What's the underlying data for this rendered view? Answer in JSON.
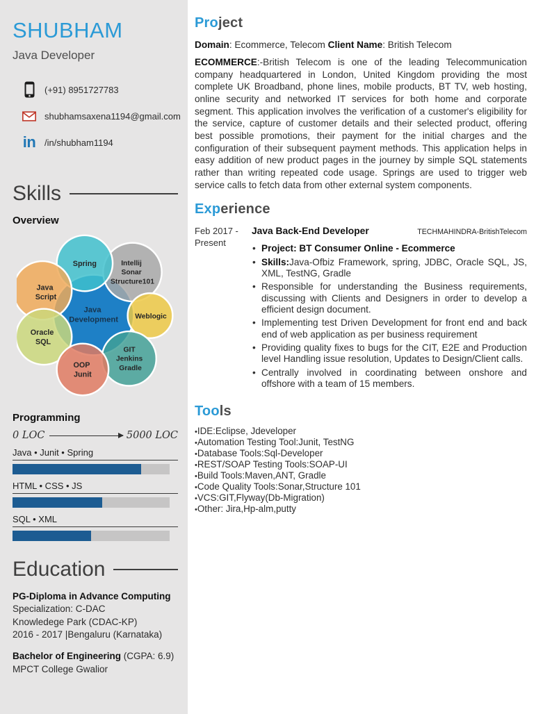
{
  "colors": {
    "accent_blue": "#2b9ad6",
    "heading_gray": "#4d4d4d",
    "sidebar_bg": "#e6e5e5",
    "bar_fill": "#1d5c92",
    "bar_track": "#c6c5c5",
    "linkedin_blue": "#2077b5",
    "email_red": "#c0392b"
  },
  "sidebar": {
    "name": "SHUBHAM",
    "role": "Java Developer",
    "contact": {
      "phone": "(+91) 8951727783",
      "email": "shubhamsaxena1194@gmail.com",
      "linkedin_glyph": "in",
      "linkedin": "/in/shubham1194"
    },
    "skills": {
      "heading": "Skills",
      "subheading": "Overview",
      "venn": {
        "center": {
          "color": "#1e80c6",
          "label_color": "#17344e",
          "lines": [
            "Java",
            "Development"
          ]
        },
        "satellites": [
          {
            "name": "spring",
            "color": "#3fc0cd",
            "lines": [
              "Spring"
            ]
          },
          {
            "name": "intellij",
            "color": "#a8a8a8",
            "lines": [
              "Intellij",
              "Sonar",
              "Structure101"
            ]
          },
          {
            "name": "javascript",
            "color": "#f0a958",
            "lines": [
              "Java",
              "Script"
            ]
          },
          {
            "name": "weblogic",
            "color": "#edc844",
            "lines": [
              "Weblogic"
            ]
          },
          {
            "name": "oracle",
            "color": "#cbd87b",
            "lines": [
              "Oracle",
              "SQL"
            ]
          },
          {
            "name": "git",
            "color": "#41a096",
            "lines": [
              "GIT",
              "Jenkins",
              "Gradle"
            ]
          },
          {
            "name": "oop",
            "color": "#e07a60",
            "lines": [
              "OOP",
              "Junit"
            ]
          }
        ]
      }
    },
    "programming": {
      "heading": "Programming",
      "scale_left": "0 LOC",
      "scale_right": "5000 LOC",
      "bar_color": "#1d5c92",
      "bars": [
        {
          "label": "Java • Junit • Spring",
          "percent": 82
        },
        {
          "label": "HTML • CSS • JS",
          "percent": 57
        },
        {
          "label": "SQL • XML",
          "percent": 50
        }
      ]
    },
    "education": {
      "heading": "Education",
      "entries": [
        {
          "title": "PG-Diploma in Advance Computing",
          "title_suffix": "",
          "lines": [
            "Specialization: C-DAC",
            "Knowledege Park (CDAC-KP)",
            "2016 - 2017 |Bengaluru (Karnataka)"
          ]
        },
        {
          "title": "Bachelor of Engineering",
          "title_suffix": " (CGPA: 6.9)",
          "lines": [
            "MPCT College Gwalior"
          ]
        }
      ]
    }
  },
  "main": {
    "project": {
      "heading_accent": "Pro",
      "heading_rest": "ject",
      "domain_label": "Domain",
      "domain_rest": ": Ecommerce, Telecom ",
      "client_label": "Client Name",
      "client_rest": ": British Telecom",
      "body_lead": "ECOMMERCE",
      "body_rest": ":-British Telecom is one of the leading Telecommunication company headquartered in London, United Kingdom providing the most complete UK Broadband, phone lines, mobile products, BT TV, web hosting, online security and networked IT services for both home and corporate segment. This application involves the verification of a customer's eligibility for the service, capture of customer details and their selected product, offering best possible promotions, their payment for the initial charges and the configuration of their subsequent payment methods. This application helps in easy addition of new product pages in the journey by simple SQL statements rather than writing repeated code usage. Springs are used to trigger web service calls to fetch data from other external system components."
    },
    "experience": {
      "heading_accent": "Exp",
      "heading_rest": "erience",
      "date_line1": "Feb 2017 -",
      "date_line2": "Present",
      "title": "Java Back-End Developer",
      "company": "TECHMAHINDRA-BritishTelecom",
      "bullets": [
        {
          "bold": "Project: BT Consumer Online - Ecommerce",
          "rest": ""
        },
        {
          "bold": "Skills:",
          "rest": "Java-Ofbiz Framework, spring, JDBC, Oracle SQL, JS, XML, TestNG, Gradle"
        },
        {
          "bold": "",
          "rest": "Responsible for understanding the Business requirements, discussing with Clients and Designers in order to develop a efficient design document."
        },
        {
          "bold": "",
          "rest": "Implementing test Driven Development for front end and back end of web application as per business requirement"
        },
        {
          "bold": "",
          "rest": "Providing quality fixes to bugs for the CIT, E2E and Production level Handling issue resolution, Updates to Design/Client calls."
        },
        {
          "bold": "",
          "rest": "Centrally involved in coordinating between onshore and offshore with a team of 15 members."
        }
      ]
    },
    "tools": {
      "heading_accent": "Too",
      "heading_rest": "ls",
      "items": [
        "IDE:Eclipse, Jdeveloper",
        "Automation Testing Tool:Junit, TestNG",
        "Database Tools:Sql-Developer",
        "REST/SOAP Testing Tools:SOAP-UI",
        "Build Tools:Maven,ANT, Gradle",
        "Code Quality Tools:Sonar,Structure 101",
        "VCS:GIT,Flyway(Db-Migration)",
        "Other: Jira,Hp-alm,putty"
      ]
    }
  }
}
